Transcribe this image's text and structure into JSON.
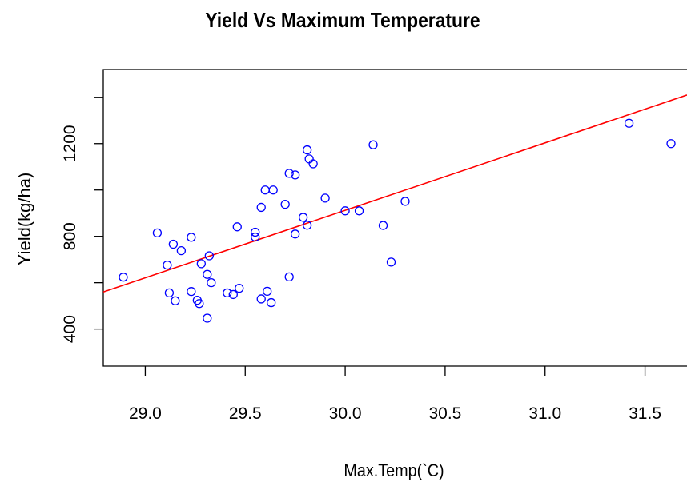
{
  "chart_data": {
    "type": "scatter",
    "title": "Yield Vs Maximum Temperature",
    "xlabel": "Max.Temp(`C)",
    "ylabel": "Yield(kg/ha)",
    "xlim": [
      28.79,
      31.71
    ],
    "ylim": [
      240,
      1520
    ],
    "xticks": [
      29.0,
      29.5,
      30.0,
      30.5,
      31.0,
      31.5
    ],
    "xtick_labels": [
      "29.0",
      "29.5",
      "30.0",
      "30.5",
      "31.0",
      "31.5"
    ],
    "yticks": [
      400,
      800,
      1200
    ],
    "ytick_labels": [
      "400",
      "800",
      "1200"
    ],
    "point_color": "#0000ff",
    "line_color": "#ff0000",
    "regression_line": {
      "x": [
        28.79,
        31.71
      ],
      "y": [
        560,
        1410
      ]
    },
    "points": [
      {
        "x": 28.89,
        "y": 624
      },
      {
        "x": 29.06,
        "y": 815
      },
      {
        "x": 29.11,
        "y": 676
      },
      {
        "x": 29.12,
        "y": 556
      },
      {
        "x": 29.14,
        "y": 766
      },
      {
        "x": 29.15,
        "y": 522
      },
      {
        "x": 29.18,
        "y": 738
      },
      {
        "x": 29.23,
        "y": 796
      },
      {
        "x": 29.23,
        "y": 562
      },
      {
        "x": 29.26,
        "y": 524
      },
      {
        "x": 29.27,
        "y": 510
      },
      {
        "x": 29.28,
        "y": 682
      },
      {
        "x": 29.31,
        "y": 447
      },
      {
        "x": 29.31,
        "y": 636
      },
      {
        "x": 29.32,
        "y": 716
      },
      {
        "x": 29.33,
        "y": 600
      },
      {
        "x": 29.41,
        "y": 556
      },
      {
        "x": 29.44,
        "y": 549
      },
      {
        "x": 29.46,
        "y": 841
      },
      {
        "x": 29.47,
        "y": 576
      },
      {
        "x": 29.55,
        "y": 818
      },
      {
        "x": 29.55,
        "y": 797
      },
      {
        "x": 29.58,
        "y": 925
      },
      {
        "x": 29.58,
        "y": 530
      },
      {
        "x": 29.6,
        "y": 1000
      },
      {
        "x": 29.61,
        "y": 563
      },
      {
        "x": 29.63,
        "y": 514
      },
      {
        "x": 29.64,
        "y": 1000
      },
      {
        "x": 29.7,
        "y": 938
      },
      {
        "x": 29.72,
        "y": 1072
      },
      {
        "x": 29.72,
        "y": 625
      },
      {
        "x": 29.75,
        "y": 1065
      },
      {
        "x": 29.75,
        "y": 810
      },
      {
        "x": 29.79,
        "y": 882
      },
      {
        "x": 29.81,
        "y": 1173
      },
      {
        "x": 29.82,
        "y": 1134
      },
      {
        "x": 29.81,
        "y": 848
      },
      {
        "x": 29.84,
        "y": 1113
      },
      {
        "x": 29.9,
        "y": 965
      },
      {
        "x": 30.0,
        "y": 910
      },
      {
        "x": 30.07,
        "y": 910
      },
      {
        "x": 30.14,
        "y": 1195
      },
      {
        "x": 30.19,
        "y": 847
      },
      {
        "x": 30.23,
        "y": 689
      },
      {
        "x": 30.3,
        "y": 951
      },
      {
        "x": 31.42,
        "y": 1288
      },
      {
        "x": 31.63,
        "y": 1200
      }
    ]
  }
}
